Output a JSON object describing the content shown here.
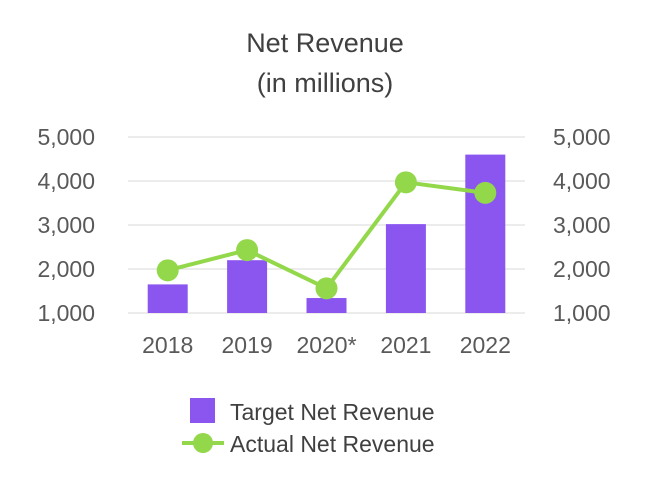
{
  "chart_data": {
    "type": "bar",
    "title": [
      "Net Revenue",
      "(in millions)"
    ],
    "categories": [
      "2018",
      "2019",
      "2020*",
      "2021",
      "2022"
    ],
    "series": [
      {
        "name": "Target Net Revenue",
        "kind": "bar",
        "color": "#8b55f0",
        "values": [
          1650,
          2200,
          1340,
          3020,
          4600
        ]
      },
      {
        "name": "Actual Net Revenue",
        "kind": "line",
        "color": "#92d84a",
        "values": [
          1970,
          2430,
          1560,
          3970,
          3730
        ]
      }
    ],
    "ylim": [
      1000,
      5000
    ],
    "yticks": [
      1000,
      2000,
      3000,
      4000,
      5000
    ],
    "ytick_labels": [
      "1,000",
      "2,000",
      "3,000",
      "4,000",
      "5,000"
    ],
    "secondary_ytick_labels": [
      "1,000",
      "2,000",
      "3,000",
      "4,000",
      "5,000"
    ],
    "grid": true,
    "legend": "bottom-center",
    "xlabel": "",
    "ylabel": ""
  }
}
